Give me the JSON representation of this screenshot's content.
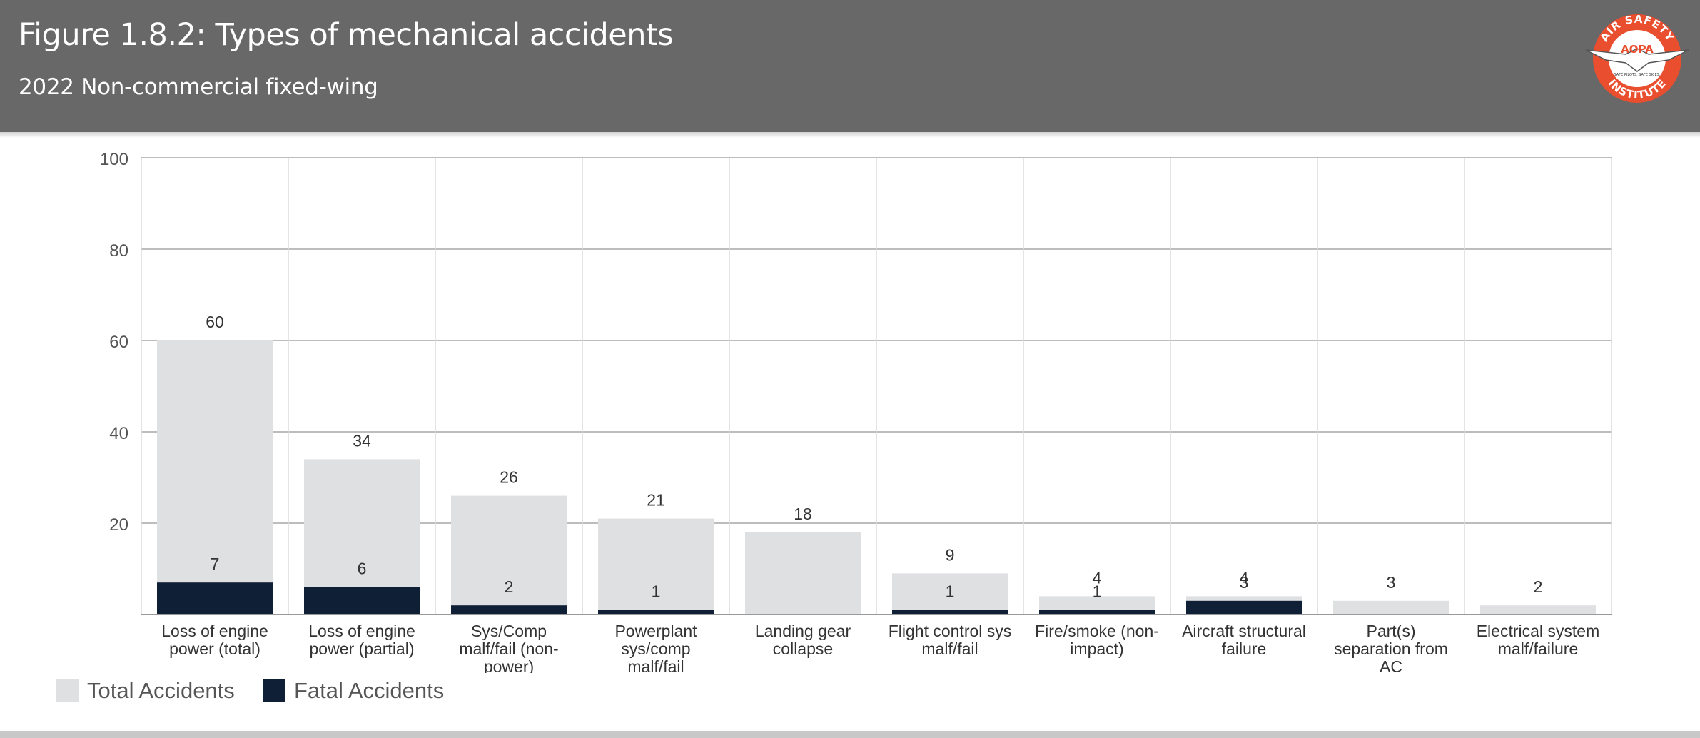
{
  "header": {
    "title": "Figure 1.8.2: Types of mechanical accidents",
    "subtitle": "2022 Non-commercial fixed-wing",
    "logo": {
      "top_text": "AIR SAFETY",
      "center_text": "AOPA",
      "bottom_text": "INSTITUTE",
      "tagline": "SAFE PILOTS. SAFE SKIES."
    }
  },
  "colors": {
    "header_bg": "#686868",
    "total": "#dfe0e2",
    "fatal": "#0f1f35",
    "logo_orange": "#e94e2e",
    "grid": "#bdbdbd"
  },
  "chart_data": {
    "type": "bar",
    "stacking": "overlap",
    "categories": [
      "Loss of engine power (total)",
      "Loss of engine power (partial)",
      "Sys/Comp malf/fail (non-power)",
      "Powerplant sys/comp malf/fail",
      "Landing gear collapse",
      "Flight control sys malf/fail",
      "Fire/smoke (non-impact)",
      "Aircraft structural failure",
      "Part(s) separation from AC",
      "Electrical system malf/failure"
    ],
    "category_label_lines": [
      [
        "Loss of engine",
        "power (total)"
      ],
      [
        "Loss of engine",
        "power (partial)"
      ],
      [
        "Sys/Comp",
        "malf/fail (non-",
        "power)"
      ],
      [
        "Powerplant",
        "sys/comp",
        "malf/fail"
      ],
      [
        "Landing gear",
        "collapse"
      ],
      [
        "Flight control sys",
        "malf/fail"
      ],
      [
        "Fire/smoke (non-",
        "impact)"
      ],
      [
        "Aircraft structural",
        "failure"
      ],
      [
        "Part(s)",
        "separation from",
        "AC"
      ],
      [
        "Electrical system",
        "malf/failure"
      ]
    ],
    "series": [
      {
        "name": "Total Accidents",
        "values": [
          60,
          34,
          26,
          21,
          18,
          9,
          4,
          4,
          3,
          2
        ]
      },
      {
        "name": "Fatal Accidents",
        "values": [
          7,
          6,
          2,
          1,
          0,
          1,
          1,
          3,
          0,
          0
        ]
      }
    ],
    "fatal_labels_shown": [
      true,
      true,
      true,
      true,
      false,
      true,
      true,
      true,
      false,
      false
    ],
    "ylim": [
      0,
      100
    ],
    "yticks": [
      20,
      40,
      60,
      80,
      100
    ],
    "grid": true,
    "legend_position": "bottom-left"
  }
}
